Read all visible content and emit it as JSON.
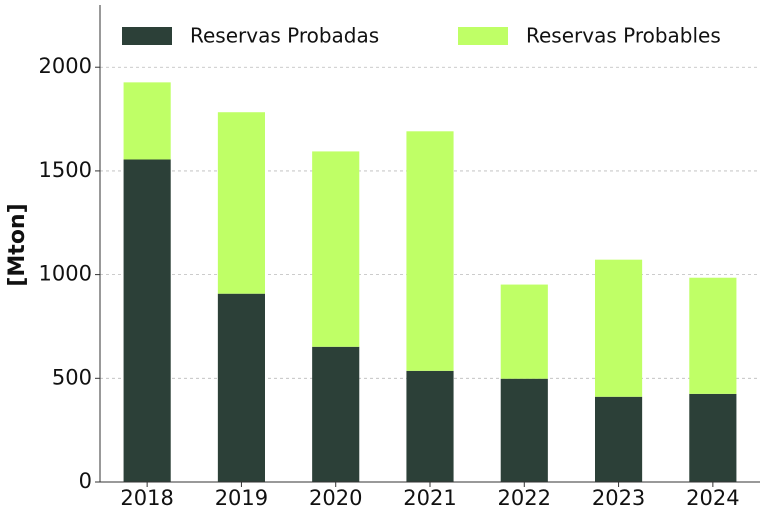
{
  "chart_data": {
    "type": "bar",
    "stacked": true,
    "y_label": "[Mton]",
    "categories": [
      "2018",
      "2019",
      "2020",
      "2021",
      "2022",
      "2023",
      "2024"
    ],
    "series": [
      {
        "name": "Reservas Probadas",
        "color": "#2c4038",
        "values": [
          1555,
          908,
          652,
          536,
          498,
          411,
          425
        ]
      },
      {
        "name": "Reservas Probables",
        "color": "#bfff66",
        "values": [
          372,
          875,
          942,
          1155,
          454,
          661,
          560
        ]
      }
    ],
    "ylim": [
      0,
      2300
    ],
    "yticks": [
      0,
      500,
      1000,
      1500,
      2000
    ],
    "grid": true,
    "legend": "top"
  }
}
